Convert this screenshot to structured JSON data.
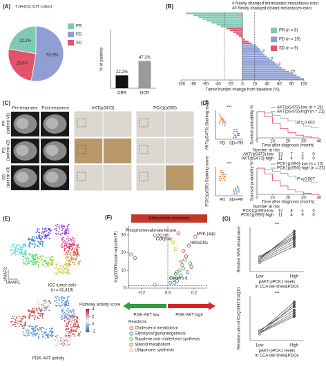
{
  "panel_a": {
    "label": "(A)",
    "title": "TJH-ICC-CIT cohort",
    "pie": {
      "type": "pie",
      "categories": [
        "PR",
        "PD",
        "SD"
      ],
      "values": [
        22.2,
        52.8,
        25.0
      ],
      "value_labels": [
        "22.2%",
        "52.8%",
        "25.0%"
      ],
      "colors": [
        "#7fc9b5",
        "#8f9fd4",
        "#e3546b"
      ]
    },
    "bar": {
      "type": "bar",
      "categories": [
        "ORR",
        "DCR"
      ],
      "values": [
        22.2,
        47.2
      ],
      "value_labels": [
        "22.2%",
        "47.2%"
      ],
      "colors": [
        "#111111",
        "#9a9a9a"
      ],
      "ylabel": "% of patients",
      "ylim": [
        0,
        100
      ]
    }
  },
  "panel_b": {
    "label": "(B)",
    "type": "waterfall",
    "xlabel": "Tumor burden change from baseline (%)",
    "notes": [
      "# Newly changed intrahepatic metastases exist",
      "## Newly changed distant metastases exist"
    ],
    "xlim": [
      -100,
      100
    ],
    "xticks": [
      -100,
      -80,
      -60,
      -40,
      -20,
      0,
      20,
      40,
      60,
      80,
      100
    ],
    "reference_lines": [
      -30,
      20
    ],
    "series": [
      {
        "name": "PR (n = 8)",
        "color": "#7fc9b5",
        "values": [
          -92,
          -80,
          -72,
          -65,
          -58,
          -50,
          -42,
          -35
        ]
      },
      {
        "name": "SD (n = 9)",
        "color": "#e3546b",
        "values": [
          -26,
          -20,
          -15,
          -10,
          -6,
          -2,
          4,
          10,
          15
        ]
      },
      {
        "name": "PD (n = 19)",
        "color": "#8f9fd4",
        "values": [
          22,
          25,
          28,
          30,
          33,
          36,
          40,
          44,
          48,
          52,
          56,
          60,
          64,
          70,
          76,
          82,
          88,
          94,
          100
        ],
        "annotations": [
          null,
          null,
          null,
          "#",
          null,
          null,
          null,
          "#",
          null,
          null,
          "#",
          null,
          null,
          null,
          "##",
          null,
          null,
          null,
          null
        ]
      }
    ],
    "legend_order": [
      0,
      2,
      1
    ]
  },
  "panel_c": {
    "label": "(C)",
    "columns": [
      "Pre-treatment",
      "Post-treatment",
      "AKT(pS473)",
      "PCK1(pS90)"
    ],
    "rows": [
      {
        "group": "PR",
        "patient": "(patient #1)"
      },
      {
        "group": "PD",
        "patient": "(patient #2)"
      },
      {
        "group": "SD",
        "patient": "(patient #3)"
      }
    ]
  },
  "panel_d": {
    "label": "(D)",
    "plots": [
      {
        "strip": {
          "type": "strip",
          "ylabel": "AKT(pS473) Staining score",
          "significance": "***",
          "ylim": [
            0,
            15
          ],
          "categories": [
            "PD",
            "SD+PR"
          ],
          "series": [
            {
              "color": "#e8833a",
              "values": [
                8,
                9,
                10,
                11,
                12,
                9,
                10,
                8,
                11,
                13,
                7,
                9,
                10,
                12,
                8,
                9,
                11,
                10,
                9
              ]
            },
            {
              "color": "#5b8fd6",
              "values": [
                3,
                2,
                4,
                1,
                5,
                2,
                3,
                4,
                2,
                1,
                3,
                5,
                2,
                4,
                3,
                2,
                1
              ]
            }
          ]
        },
        "km": {
          "type": "line",
          "p_value": "P = 0.003",
          "ylabel": "Survival probability %",
          "xlabel": "Time after diagnosis (month)",
          "xlim": [
            0,
            40
          ],
          "ylim": [
            0,
            100
          ],
          "xticks": [
            0,
            10,
            20,
            30,
            40
          ],
          "x": [
            0,
            5,
            10,
            15,
            20,
            25,
            30,
            35,
            40
          ],
          "series": [
            {
              "name": "AKT(pS473)-low (n = 15)",
              "color": "#8fa6c9",
              "values": [
                100,
                95,
                85,
                75,
                65,
                55,
                45,
                40,
                40
              ]
            },
            {
              "name": "AKT(pS473)-high (n = 21)",
              "color": "#e3546b",
              "values": [
                100,
                80,
                55,
                35,
                20,
                10,
                5,
                0,
                0
              ]
            }
          ],
          "risk": {
            "title": "Number at risk",
            "rows": [
              {
                "name": "AKT(pS473)-low",
                "values": [
                  13,
                  7,
                  2,
                  0
                ]
              },
              {
                "name": "AKT(pS473)-high",
                "values": [
                  11,
                  4,
                  0,
                  0
                ]
              }
            ]
          }
        }
      },
      {
        "strip": {
          "type": "strip",
          "ylabel": "PCK1(pS90) Staining score",
          "significance": "***",
          "ylim": [
            0,
            15
          ],
          "categories": [
            "PD",
            "SD+PR"
          ],
          "series": [
            {
              "color": "#e8833a",
              "values": [
                9,
                10,
                11,
                12,
                8,
                10,
                9,
                11,
                13,
                10,
                8,
                12,
                9,
                10,
                11,
                9,
                10,
                12,
                8
              ]
            },
            {
              "color": "#5b8fd6",
              "values": [
                2,
                3,
                1,
                4,
                2,
                3,
                5,
                2,
                1,
                3,
                4,
                2,
                3,
                1,
                2,
                4,
                3
              ]
            }
          ]
        },
        "km": {
          "type": "line",
          "p_value": "P = 0.007",
          "ylabel": "Survival probability %",
          "xlabel": "Time after diagnosis (month)",
          "xlim": [
            0,
            40
          ],
          "ylim": [
            0,
            100
          ],
          "xticks": [
            0,
            10,
            20,
            30,
            40
          ],
          "x": [
            0,
            5,
            10,
            15,
            20,
            25,
            30,
            35,
            40
          ],
          "series": [
            {
              "name": "PCK1(pS90)-low (n = 13)",
              "color": "#8fa6c9",
              "values": [
                100,
                95,
                88,
                80,
                70,
                60,
                50,
                45,
                45
              ]
            },
            {
              "name": "PCK1(pS90)-high (n = 23)",
              "color": "#e3546b",
              "values": [
                100,
                78,
                52,
                32,
                18,
                9,
                4,
                0,
                0
              ]
            }
          ],
          "risk": {
            "title": "Number at risk",
            "rows": [
              {
                "name": "PCK1(pS90)-low",
                "values": [
                  12,
                  8,
                  4,
                  0
                ]
              },
              {
                "name": "PCK1(pS90)-high",
                "values": [
                  11,
                  4,
                  0,
                  0
                ]
              }
            ]
          }
        }
      }
    ]
  },
  "panel_e": {
    "label": "(E)",
    "cells_label": "ICC tumor cells",
    "n_label": "(n = 41,419)",
    "axis_x": "UMAP1",
    "axis_y": "UMAP2",
    "activity_label": "PI3K-AKT activity",
    "colorbar_title": "Pathway activity score",
    "colorbar_ticks": [
      4,
      2,
      0,
      -2
    ]
  },
  "panel_f": {
    "label": "(F)",
    "banner": "Differential reactions",
    "type": "scatter",
    "ylabel": "-log10(Wilcoxon-adjusted P)",
    "xlabel": "Cohen's d",
    "xlim": [
      -0.3,
      0.3
    ],
    "ylim": [
      0,
      35
    ],
    "xticks": [
      -0.2,
      {
        "value": 0,
        "label": "0.0"
      },
      0.2
    ],
    "yticks": [
      0,
      10,
      20,
      30
    ],
    "reference_lines": {
      "x": 0,
      "y": 1.3
    },
    "low_label": "PI3K-AKT low",
    "high_label": "PI3K-AKT high",
    "legend_title": "Reactions",
    "series": [
      {
        "name": "Cholesterol metabolism",
        "color": "#d62728",
        "x": [
          0.21,
          0.08,
          0.16,
          0.12,
          0.14,
          0.1,
          0.18
        ],
        "values": [
          29,
          31,
          24,
          21,
          18,
          15,
          12
        ],
        "labels": [
          "MVK (atp)",
          "Phosphomevalonate kinase",
          "HMGCRc",
          null,
          null,
          null,
          null
        ]
      },
      {
        "name": "Glycolysis/gluconeogenesis",
        "color": "#1f77b4",
        "x": [
          0.02,
          0.05,
          0.1,
          0.15,
          0.07,
          -0.25
        ],
        "values": [
          3,
          5,
          7,
          9,
          4,
          17
        ]
      },
      {
        "name": "Squalene and cholesterol synthesis",
        "color": "#2ca02c",
        "x": [
          0.06,
          0.09,
          0.11,
          0.13,
          0.17,
          0.12,
          0.08
        ],
        "values": [
          8,
          10,
          13,
          16,
          14,
          11,
          6
        ]
      },
      {
        "name": "Steroid metabolism",
        "color": "#8c6d3f",
        "x": [
          -0.28,
          -0.1,
          0.03,
          0.05,
          0.07
        ],
        "values": [
          19,
          2,
          6,
          3,
          9
        ]
      },
      {
        "name": "Ubiquinone synthesis",
        "color": "#e6b800",
        "x": [
          0.02,
          0.04,
          0.06
        ],
        "values": [
          28,
          26,
          22
        ],
        "labels": [
          "COQ7m",
          "COQ5m",
          null
        ]
      }
    ]
  },
  "panel_g": {
    "label": "(G)",
    "plots": [
      {
        "type": "paired",
        "ylabel": "Relative MVA abundance",
        "significance": "***",
        "categories": [
          "Low",
          "High"
        ],
        "xlabel": [
          "pAKT-pPCK1 levels",
          "in CCA cell lines&PDOs"
        ],
        "ylim": [
          0,
          3.5
        ],
        "low": [
          0.8,
          1.0,
          1.1,
          0.9,
          1.2,
          1.0,
          0.7,
          1.1
        ],
        "high": [
          2.2,
          2.6,
          3.0,
          2.4,
          2.8,
          3.2,
          2.0,
          2.7
        ]
      },
      {
        "type": "paired",
        "ylabel": "Relative ratio of CoQ10H2/CoQ10",
        "significance": "***",
        "categories": [
          "Low",
          "High"
        ],
        "xlabel": [
          "pAKT-pPCK1 levels",
          "in CCA cell lines&PDOs"
        ],
        "ylim": [
          0,
          5.5
        ],
        "low": [
          1.0,
          1.2,
          0.9,
          1.1,
          1.3,
          0.8,
          1.0
        ],
        "high": [
          3.5,
          4.2,
          3.0,
          4.8,
          3.8,
          4.5,
          3.2
        ]
      }
    ]
  }
}
